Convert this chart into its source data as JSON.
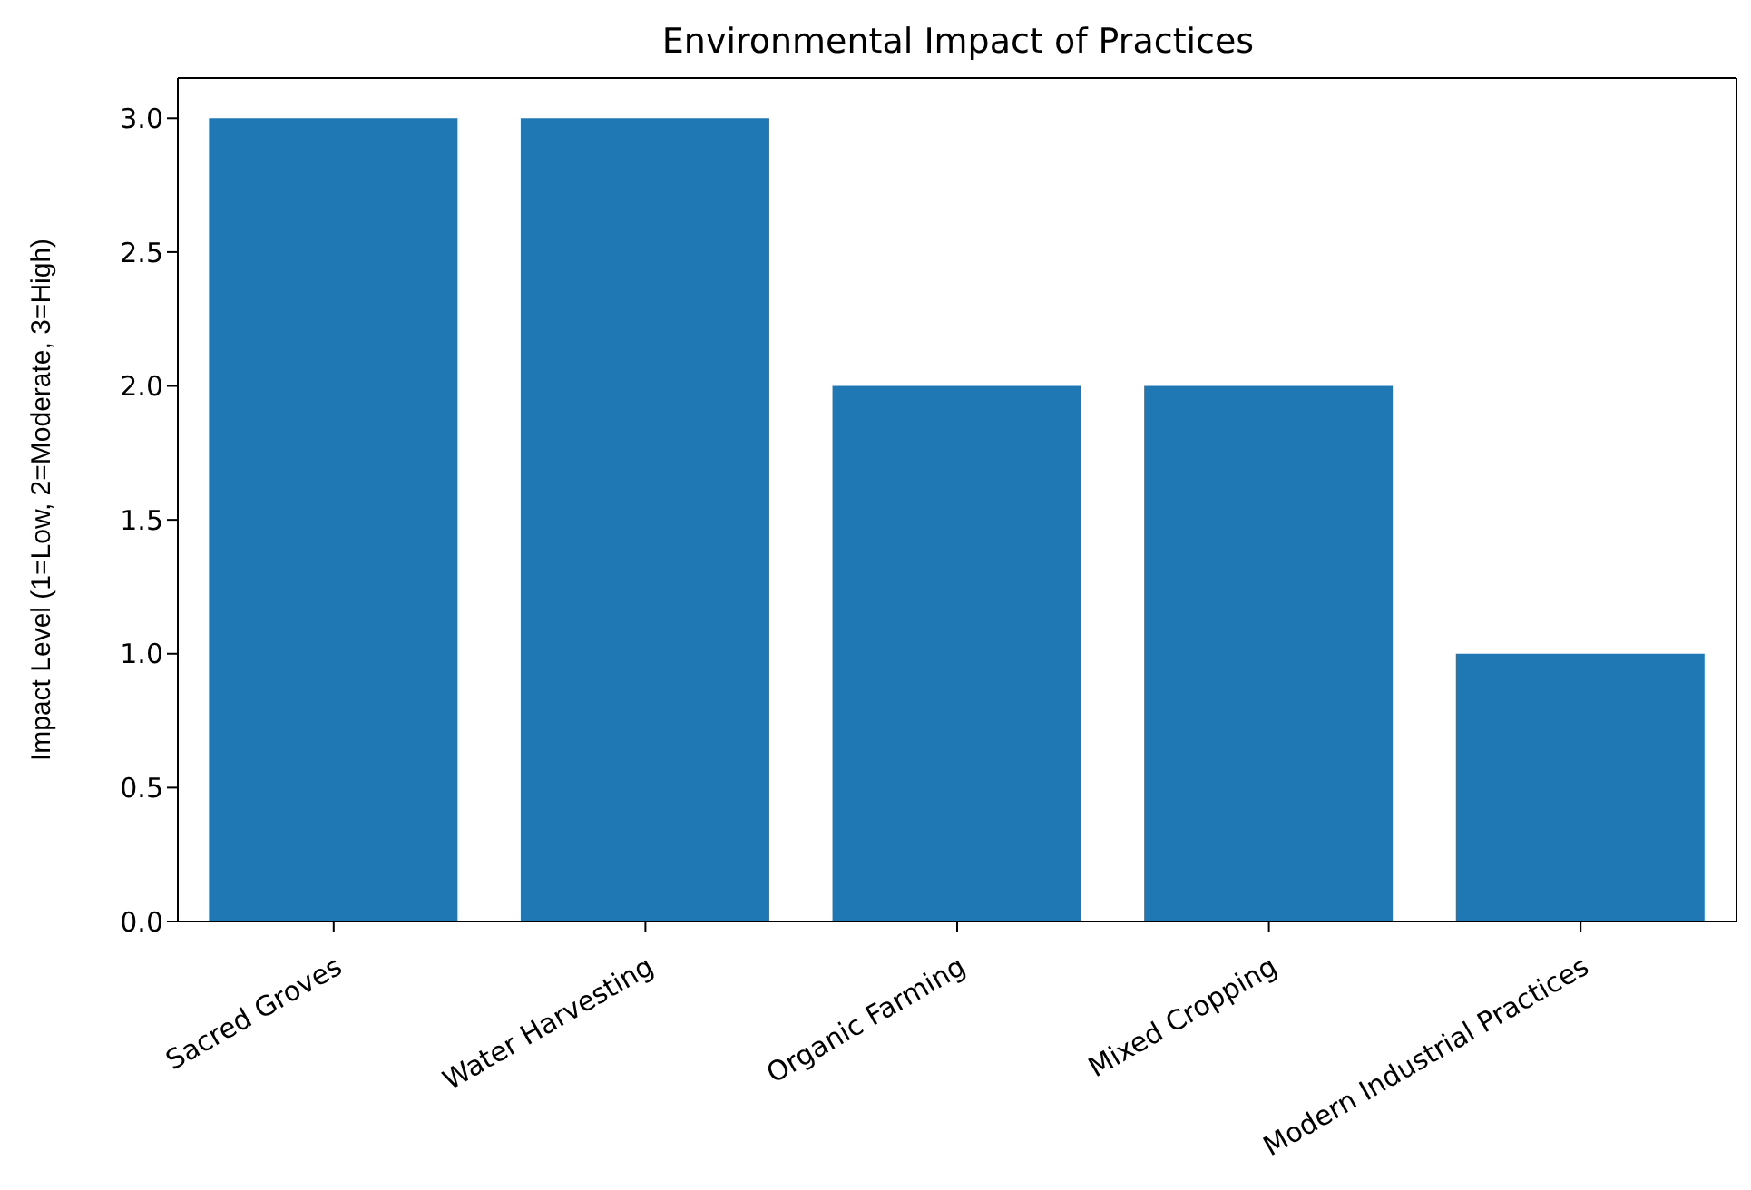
{
  "chart_data": {
    "type": "bar",
    "title": "Environmental Impact of Practices",
    "ylabel": "Impact Level (1=Low, 2=Moderate, 3=High)",
    "categories": [
      "Sacred Groves",
      "Water Harvesting",
      "Organic Farming",
      "Mixed Cropping",
      "Modern Industrial Practices"
    ],
    "values": [
      3,
      3,
      2,
      2,
      1
    ],
    "color": "#1f77b4",
    "ylim": [
      0,
      3.15
    ],
    "yticks": [
      {
        "value": 0,
        "label": "0.0"
      },
      0.5,
      {
        "value": 1,
        "label": "1.0"
      },
      1.5,
      {
        "value": 2,
        "label": "2.0"
      },
      2.5,
      {
        "value": 3,
        "label": "3.0"
      }
    ],
    "grid": false,
    "legend": false
  }
}
